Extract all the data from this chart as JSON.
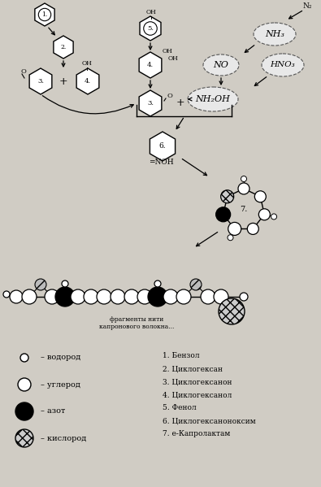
{
  "bg_color": "#d0ccc4",
  "legend_items": [
    {
      "label": "– водород",
      "r": 5,
      "fc": "white",
      "hatch": null
    },
    {
      "label": "– углерод",
      "r": 8,
      "fc": "white",
      "hatch": null
    },
    {
      "label": "– азот",
      "r": 11,
      "fc": "black",
      "hatch": null
    },
    {
      "label": "– кислород",
      "r": 11,
      "fc": "white",
      "hatch": "xxx"
    }
  ],
  "numbered_list": [
    "1. Бензол",
    "2. Циклогексан",
    "3. Циклогексанон",
    "4. Циклогексанол",
    "5. Фенол",
    "6. Циклогексаноноксим",
    "7. е-Капролактам"
  ]
}
